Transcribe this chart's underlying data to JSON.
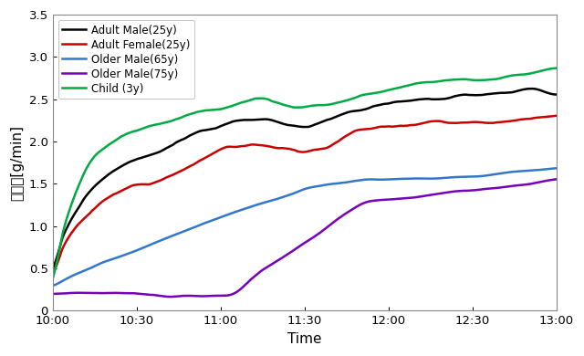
{
  "title": "",
  "xlabel": "Time",
  "ylabel": "発汗率[g/min]",
  "ylim": [
    0,
    3.5
  ],
  "yticks": [
    0,
    0.5,
    1.0,
    1.5,
    2.0,
    2.5,
    3.0,
    3.5
  ],
  "x_labels": [
    "10:00",
    "10:30",
    "11:00",
    "11:30",
    "12:00",
    "12:30",
    "13:00"
  ],
  "series": [
    {
      "label": "Adult Male(25y)",
      "color": "#000000",
      "linewidth": 1.8
    },
    {
      "label": "Adult Female(25y)",
      "color": "#cc0000",
      "linewidth": 1.8
    },
    {
      "label": "Older Male(65y)",
      "color": "#3377cc",
      "linewidth": 1.8
    },
    {
      "label": "Older Male(75y)",
      "color": "#7700bb",
      "linewidth": 1.8
    },
    {
      "label": "Child (3y)",
      "color": "#00aa44",
      "linewidth": 1.8
    }
  ],
  "background_color": "#ffffff",
  "legend_fontsize": 8.5,
  "axis_fontsize": 11,
  "tick_fontsize": 9.5
}
